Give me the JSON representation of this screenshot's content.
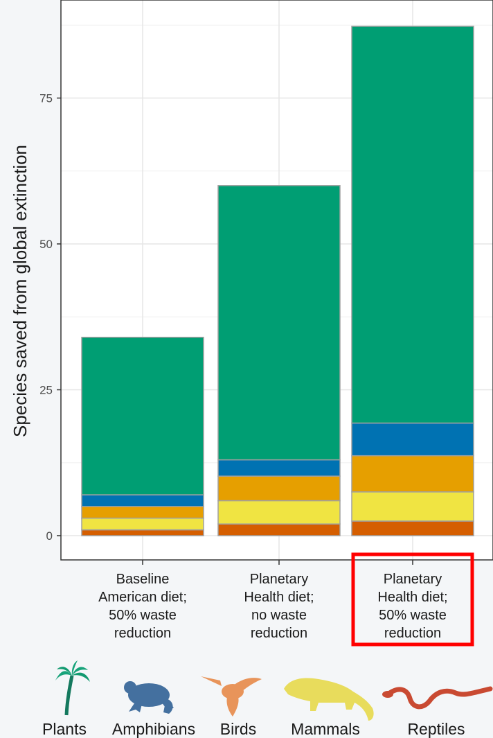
{
  "chart_data": {
    "type": "bar",
    "stacked": true,
    "categories": [
      [
        "Baseline",
        "American diet;",
        "50% waste",
        "reduction"
      ],
      [
        "Planetary",
        "Health diet;",
        "no waste",
        "reduction"
      ],
      [
        "Planetary",
        "Health diet;",
        "50% waste",
        "reduction"
      ]
    ],
    "series": [
      {
        "name": "Reptiles",
        "color": "#d55e00",
        "values": [
          1,
          2,
          2.5
        ]
      },
      {
        "name": "Mammals",
        "color": "#f0e442",
        "values": [
          2,
          4,
          5
        ]
      },
      {
        "name": "Birds",
        "color": "#e69f00",
        "values": [
          2,
          4.2,
          6.2
        ]
      },
      {
        "name": "Amphibians",
        "color": "#0072b2",
        "values": [
          2,
          2.8,
          5.6
        ]
      },
      {
        "name": "Plants",
        "color": "#009e73",
        "values": [
          27,
          47,
          68
        ]
      }
    ],
    "xlabel": "",
    "ylabel": "Species saved from global extinction",
    "ylim": [
      0,
      88
    ],
    "yticks": [
      0,
      25,
      50,
      75
    ],
    "grid": true,
    "highlighted_category": 2,
    "highlight_color": "#ff0000",
    "legend_position": "bottom",
    "legend_icons": [
      "palm-tree-icon",
      "frog-icon",
      "hummingbird-icon",
      "mammal-icon",
      "snake-icon"
    ]
  }
}
